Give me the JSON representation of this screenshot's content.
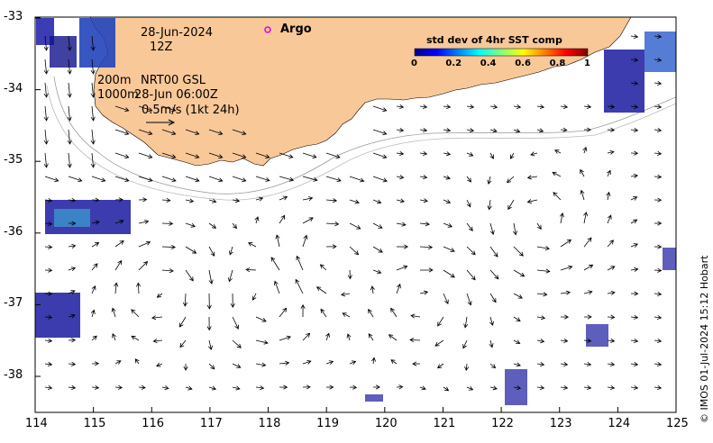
{
  "map": {
    "date": "28-Jun-2024",
    "hour": "12Z",
    "isobaths": [
      "200m",
      "1000m"
    ],
    "product": "NRT00 GSL",
    "sst_time": "28-Jun 06:00Z",
    "scale_label": "0.5m/s (1kt 24h)",
    "argo_label": "Argo",
    "colorbar": {
      "title": "std dev of 4hr SST comp",
      "ticks": [
        "0",
        "0.2",
        "0.4",
        "0.6",
        "0.8",
        "1"
      ]
    },
    "x_ticks": [
      "114",
      "115",
      "116",
      "117",
      "118",
      "119",
      "120",
      "121",
      "122",
      "123",
      "124",
      "125"
    ],
    "y_ticks": [
      "-33",
      "-34",
      "-35",
      "-36",
      "-37",
      "-38"
    ],
    "credit": "© IMOS 01-Jul-2024 15:12 Hobart",
    "colors": {
      "land": "#f9c898",
      "argo": "#e000e0",
      "arrows": "#000000",
      "isobath": "#aaaaaa"
    }
  }
}
